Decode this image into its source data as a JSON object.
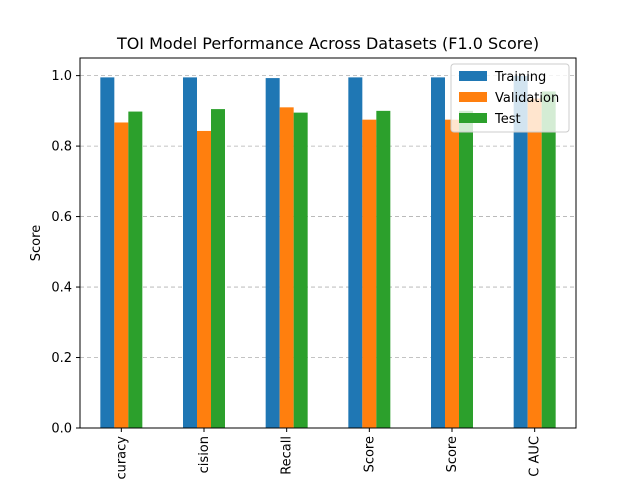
{
  "chart_data": {
    "type": "bar",
    "title": "TOI Model Performance Across Datasets (F1.0 Score)",
    "xlabel": "",
    "ylabel": "Score",
    "ylim": [
      0,
      1.05
    ],
    "yticks": [
      "0.0",
      "0.2",
      "0.4",
      "0.6",
      "0.8",
      "1.0"
    ],
    "grid": true,
    "legend_position": "top-right",
    "categories": [
      "curacy",
      "cision",
      "Recall",
      "Score",
      "Score",
      "C AUC"
    ],
    "series": [
      {
        "name": "Training",
        "color": "#1f77b4",
        "values": [
          0.995,
          0.995,
          0.993,
          0.995,
          0.995,
          0.999
        ]
      },
      {
        "name": "Validation",
        "color": "#ff7f0e",
        "values": [
          0.867,
          0.843,
          0.91,
          0.875,
          0.875,
          0.935
        ]
      },
      {
        "name": "Test",
        "color": "#2ca02c",
        "values": [
          0.898,
          0.905,
          0.895,
          0.9,
          0.9,
          0.955
        ]
      }
    ]
  }
}
